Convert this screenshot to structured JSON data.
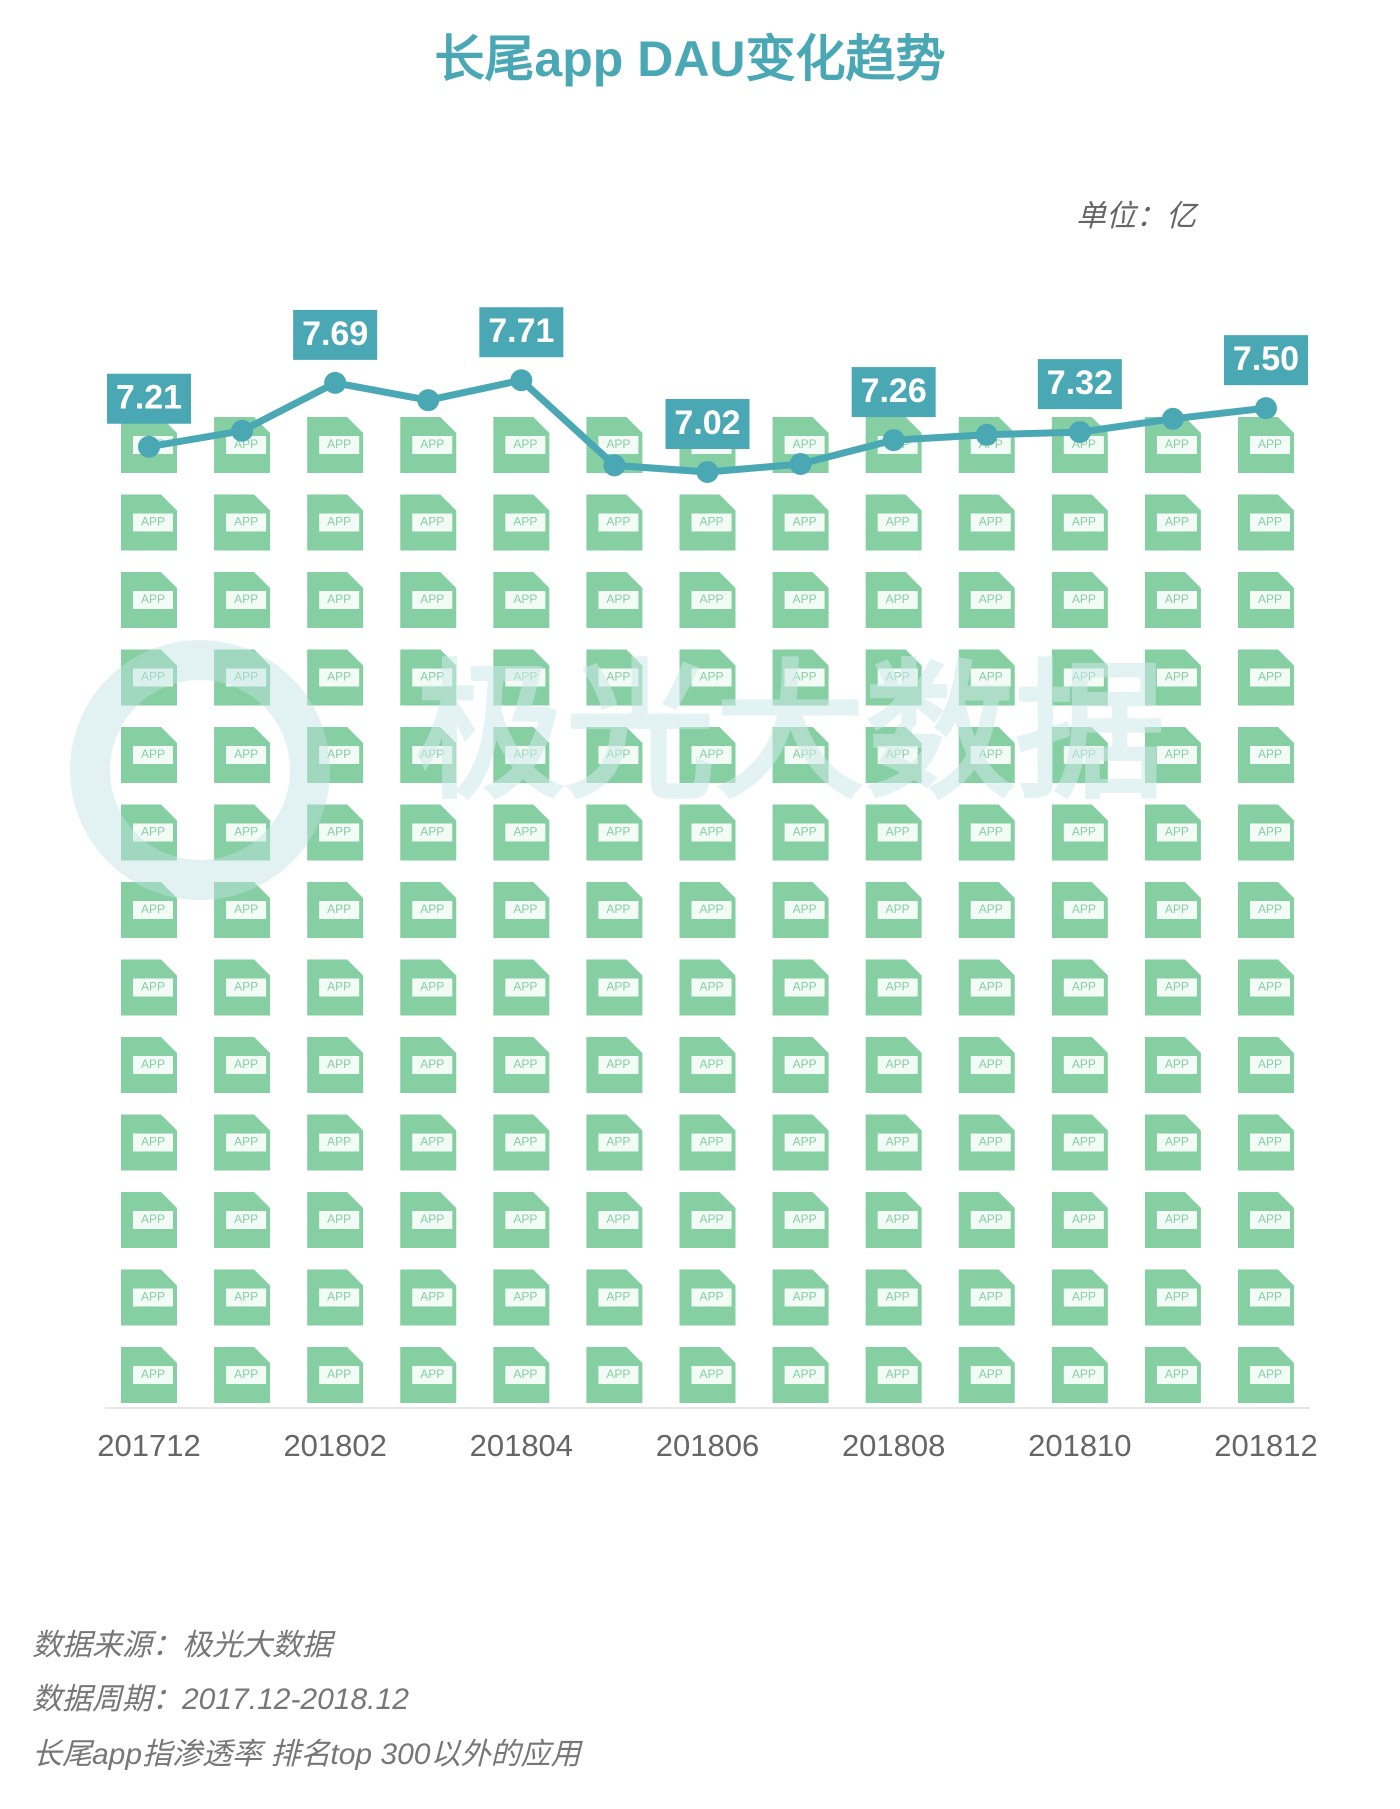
{
  "chart_data": {
    "type": "line",
    "title": "长尾app DAU变化趋势",
    "unit": "单位：亿",
    "watermark": "极光大数据",
    "icon_label": "APP",
    "categories": [
      "201712",
      null,
      "201802",
      null,
      "201804",
      null,
      "201806",
      null,
      "201808",
      null,
      "201810",
      null,
      "201812"
    ],
    "series": [
      {
        "name": "DAU",
        "color": "#4aa8b5",
        "values": [
          7.21,
          7.33,
          7.69,
          7.56,
          7.71,
          7.07,
          7.02,
          7.08,
          7.26,
          7.3,
          7.32,
          7.42,
          7.5
        ],
        "value_labels": [
          "7.21",
          null,
          "7.69",
          null,
          "7.71",
          null,
          "7.02",
          null,
          "7.26",
          null,
          "7.32",
          null,
          "7.50"
        ]
      }
    ],
    "notes": [
      "数据来源：极光大数据",
      "数据周期：2017.12-2018.12",
      "长尾app指渗透率 排名top 300以外的应用"
    ]
  }
}
